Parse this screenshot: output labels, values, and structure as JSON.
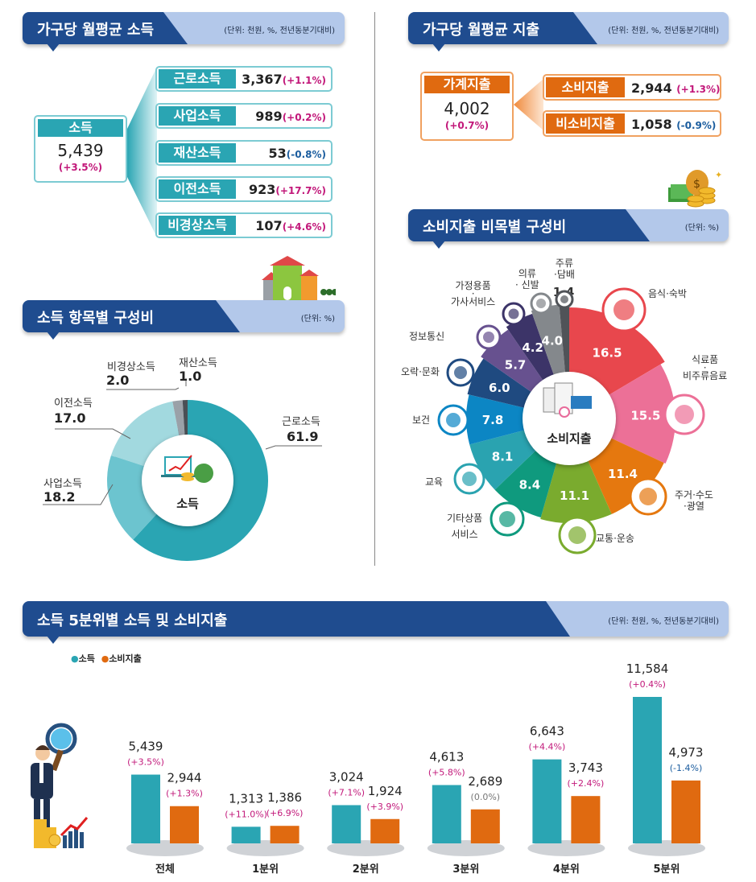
{
  "income": {
    "title": "가구당 월평균 소득",
    "unit": "(단위: 천원, %, 전년동분기대비)",
    "total": {
      "label": "소득",
      "value": "5,439",
      "change": "(+3.5%)"
    },
    "items": [
      {
        "label": "근로소득",
        "value": "3,367",
        "change": "(+1.1%)",
        "sign": "pos"
      },
      {
        "label": "사업소득",
        "value": "989",
        "change": "(+0.2%)",
        "sign": "pos"
      },
      {
        "label": "재산소득",
        "value": "53",
        "change": "(-0.8%)",
        "sign": "neg"
      },
      {
        "label": "이전소득",
        "value": "923",
        "change": "(+17.7%)",
        "sign": "pos"
      },
      {
        "label": "비경상소득",
        "value": "107",
        "change": "(+4.6%)",
        "sign": "pos"
      }
    ]
  },
  "expenditure": {
    "title": "가구당 월평균 지출",
    "unit": "(단위: 천원, %, 전년동분기대비)",
    "total": {
      "label": "가계지출",
      "value": "4,002",
      "change": "(+0.7%)"
    },
    "items": [
      {
        "label": "소비지출",
        "value": "2,944",
        "change": "(+1.3%)",
        "sign": "pos"
      },
      {
        "label": "비소비지출",
        "value": "1,058",
        "change": "(-0.9%)",
        "sign": "neg"
      }
    ]
  },
  "colors": {
    "teal": "#2aa5b3",
    "orange": "#e06a10",
    "navy": "#1f4c8f",
    "positive": "#c2187a",
    "negative": "#1a5c9e"
  },
  "chart_data": [
    {
      "type": "pie",
      "title": "소득 항목별 구성비",
      "unit": "(단위: %)",
      "center_label": "소득",
      "categories": [
        "근로소득",
        "사업소득",
        "이전소득",
        "비경상소득",
        "재산소득"
      ],
      "values": [
        61.9,
        18.2,
        17.0,
        2.0,
        1.0
      ],
      "value_labels": [
        "61.9",
        "18.2",
        "17.0",
        "2.0",
        "1.0"
      ],
      "colors": [
        "#2aa5b3",
        "#6cc4cf",
        "#a2d9df",
        "#9aa1a8",
        "#4a4f55"
      ]
    },
    {
      "type": "pie",
      "title": "소비지출 비목별 구성비",
      "unit": "(단위: %)",
      "center_label": "소비지출",
      "categories": [
        "음식·숙박",
        "식료품·비주류음료",
        "주거·수도·광열",
        "교통·운송",
        "기타상품·서비스",
        "교육",
        "보건",
        "오락·문화",
        "정보통신",
        "가정용품·가사서비스",
        "의류·신발",
        "주류·담배"
      ],
      "category_lines": [
        [
          "음식·숙박"
        ],
        [
          "식료품",
          "·",
          "비주류음료"
        ],
        [
          "주거·수도",
          "·광열"
        ],
        [
          "교통·운송"
        ],
        [
          "기타상품",
          "·",
          "서비스"
        ],
        [
          "교육"
        ],
        [
          "보건"
        ],
        [
          "오락·문화"
        ],
        [
          "정보통신"
        ],
        [
          "가정용품",
          "·",
          "가사서비스"
        ],
        [
          "의류",
          "· 신발"
        ],
        [
          "주류",
          "·담배"
        ]
      ],
      "values": [
        16.5,
        15.5,
        11.4,
        11.1,
        8.4,
        8.1,
        7.8,
        6.0,
        5.7,
        4.2,
        4.0,
        1.4
      ],
      "value_labels": [
        "16.5",
        "15.5",
        "11.4",
        "11.1",
        "8.4",
        "8.1",
        "7.8",
        "6.0",
        "5.7",
        "4.2",
        "4.0",
        "1.4"
      ],
      "colors": [
        "#e8474d",
        "#ec7097",
        "#e5780f",
        "#7aab2e",
        "#0f9a7e",
        "#2aa3b0",
        "#0c86c4",
        "#1f4a80",
        "#67518f",
        "#3c3468",
        "#84888c",
        "#505358"
      ]
    },
    {
      "type": "bar",
      "title": "소득 5분위별 소득 및 소비지출",
      "unit": "(단위: 천원, %, 전년동분기대비)",
      "categories": [
        "전체",
        "1분위",
        "2분위",
        "3분위",
        "4분위",
        "5분위"
      ],
      "series": [
        {
          "name": "소득",
          "color": "#2aa5b3",
          "values": [
            5439,
            1313,
            3024,
            4613,
            6643,
            11584
          ],
          "value_labels": [
            "5,439",
            "1,313",
            "3,024",
            "4,613",
            "6,643",
            "11,584"
          ],
          "changes": [
            "(+3.5%)",
            "(+11.0%)",
            "(+7.1%)",
            "(+5.8%)",
            "(+4.4%)",
            "(+0.4%)"
          ],
          "signs": [
            "pos",
            "pos",
            "pos",
            "pos",
            "pos",
            "pos"
          ]
        },
        {
          "name": "소비지출",
          "color": "#e06a10",
          "values": [
            2944,
            1386,
            1924,
            2689,
            3743,
            4973
          ],
          "value_labels": [
            "2,944",
            "1,386",
            "1,924",
            "2,689",
            "3,743",
            "4,973"
          ],
          "changes": [
            "(+1.3%)",
            "(+6.9%)",
            "(+3.9%)",
            "(0.0%)",
            "(+2.4%)",
            "(-1.4%)"
          ],
          "signs": [
            "pos",
            "pos",
            "pos",
            "zero",
            "pos",
            "neg"
          ]
        }
      ],
      "ylim": [
        0,
        12000
      ],
      "legend": "top-left"
    }
  ]
}
